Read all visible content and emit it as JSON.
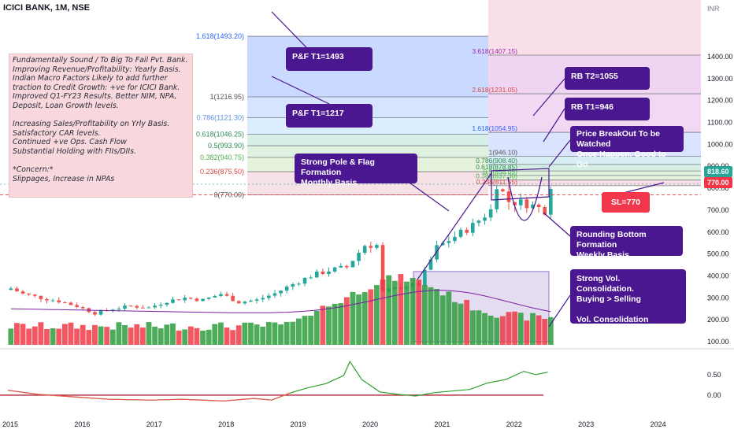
{
  "header": {
    "title": "ICICI BANK, 1M, NSE",
    "currency": "INR"
  },
  "notes": {
    "lines": [
      "Fundamentally Sound / To Big To Fail Pvt. Bank.",
      "Improving Revenue/Profitability: Yearly Basis.",
      "Indian Macro Factors Likely to add further",
      "traction to Credit Growth: +ve for ICICI Bank.",
      "Improved Q1-FY23 Results. Better NIM, NPA,",
      "Deposit, Loan Growth levels.",
      "",
      "Increasing Sales/Profitability on Yrly Basis.",
      "Satisfactory CAR levels.",
      "Continued +ve Ops. Cash Flow",
      "Substantial Holding with FIIs/DIIs.",
      "",
      "*Concern:*",
      "Slippages, Increase in NPAs"
    ]
  },
  "callouts": {
    "pf1493": "P&F T1=1493",
    "pf1217": "P&F T1=1217",
    "rbt2": "RB T2=1055",
    "rbt1": "RB T1=946",
    "breakout": [
      "Price BreakOut To be Watched",
      "Once Happen, Good to Go"
    ],
    "pole": [
      "Strong Pole & Flag Formation",
      "Monthly Basis"
    ],
    "sl": "SL=770",
    "rounding": [
      "Rounding Bottom Formation",
      "Weekly Basis"
    ],
    "volume": [
      "Strong Vol. Consolidation.",
      "Buying > Selling",
      "",
      "Vol. Consolidation Continued"
    ]
  },
  "price_tags": {
    "last": "818.60",
    "sl": "770.00"
  },
  "colors": {
    "up": "#26a69a",
    "down": "#ef5350",
    "vol_up": "#2e9e3c",
    "vol_down": "#f03a47",
    "callout": "#4a1791",
    "oscillator": "#2ca02c"
  },
  "chart_data": [
    {
      "type": "candlestick",
      "title": "ICICI BANK, 1M, NSE",
      "ylabel": "INR",
      "ylim": [
        60,
        1480
      ],
      "x_ticks": [
        "2015",
        "2016",
        "2017",
        "2018",
        "2019",
        "2020",
        "2021",
        "2022",
        "2023",
        "2024"
      ],
      "y_ticks": [
        100,
        200,
        300,
        400,
        500,
        600,
        700,
        800,
        900,
        1000,
        1100,
        1200,
        1300,
        1400
      ],
      "close_series": [
        [
          "2015-01",
          343
        ],
        [
          "2015-03",
          318
        ],
        [
          "2015-06",
          300
        ],
        [
          "2015-09",
          285
        ],
        [
          "2015-12",
          262
        ],
        [
          "2016-03",
          230
        ],
        [
          "2016-06",
          250
        ],
        [
          "2016-09",
          262
        ],
        [
          "2016-12",
          255
        ],
        [
          "2017-03",
          285
        ],
        [
          "2017-06",
          300
        ],
        [
          "2017-09",
          290
        ],
        [
          "2017-12",
          318
        ],
        [
          "2018-03",
          280
        ],
        [
          "2018-06",
          290
        ],
        [
          "2018-09",
          320
        ],
        [
          "2018-12",
          362
        ],
        [
          "2019-03",
          400
        ],
        [
          "2019-06",
          425
        ],
        [
          "2019-09",
          440
        ],
        [
          "2019-12",
          540
        ],
        [
          "2020-02",
          540
        ],
        [
          "2020-03",
          325
        ],
        [
          "2020-06",
          350
        ],
        [
          "2020-09",
          360
        ],
        [
          "2020-12",
          530
        ],
        [
          "2021-03",
          580
        ],
        [
          "2021-06",
          630
        ],
        [
          "2021-09",
          700
        ],
        [
          "2021-10",
          820
        ],
        [
          "2021-12",
          740
        ],
        [
          "2022-03",
          730
        ],
        [
          "2022-06",
          700
        ],
        [
          "2022-07",
          818.6
        ]
      ],
      "last_price": 818.6,
      "fibonacci_left": [
        {
          "level": "1.618",
          "value": 1493.2
        },
        {
          "level": "1",
          "value": 1216.95
        },
        {
          "level": "0.786",
          "value": 1121.3
        },
        {
          "level": "0.618",
          "value": 1046.25
        },
        {
          "level": "0.5",
          "value": 993.9
        },
        {
          "level": "0.382",
          "value": 940.75
        },
        {
          "level": "0.236",
          "value": 875.5
        },
        {
          "level": "0",
          "value": 770.0
        }
      ],
      "fibonacci_right": [
        {
          "level": "3.618",
          "value": 1407.15
        },
        {
          "level": "2.618",
          "value": 1231.05
        },
        {
          "level": "1.618",
          "value": 1054.95
        },
        {
          "level": "1",
          "value": 946.1
        },
        {
          "level": "0.786",
          "value": 908.4
        },
        {
          "level": "0.618",
          "value": 878.85
        },
        {
          "level": "0.5",
          "value": 858.05
        },
        {
          "level": "0.382",
          "value": 837.3
        },
        {
          "level": "0.236",
          "value": 811.55
        }
      ],
      "targets": {
        "pf_t1_high": 1493,
        "pf_t1_low": 1217,
        "rb_t2": 1055,
        "rb_t1": 946,
        "stop_loss": 770
      }
    },
    {
      "type": "line",
      "y_ticks": [
        0.0,
        0.5
      ],
      "ylim": [
        -0.25,
        0.9
      ],
      "reference_line": 0,
      "series": [
        {
          "values": [
            [
              "2015-01",
              0.12
            ],
            [
              "2015-06",
              0.02
            ],
            [
              "2016-01",
              -0.05
            ],
            [
              "2016-06",
              -0.1
            ],
            [
              "2017-01",
              -0.12
            ],
            [
              "2017-06",
              -0.1
            ],
            [
              "2018-01",
              -0.14
            ],
            [
              "2018-06",
              -0.08
            ],
            [
              "2018-09",
              -0.12
            ],
            [
              "2018-12",
              0.05
            ],
            [
              "2019-03",
              0.18
            ],
            [
              "2019-06",
              0.28
            ],
            [
              "2019-09",
              0.48
            ],
            [
              "2019-10",
              0.82
            ],
            [
              "2019-12",
              0.38
            ],
            [
              "2020-03",
              0.08
            ],
            [
              "2020-06",
              0.02
            ],
            [
              "2020-09",
              -0.02
            ],
            [
              "2020-12",
              0.06
            ],
            [
              "2021-03",
              0.1
            ],
            [
              "2021-06",
              0.14
            ],
            [
              "2021-09",
              0.3
            ],
            [
              "2021-12",
              0.38
            ],
            [
              "2022-03",
              0.58
            ],
            [
              "2022-05",
              0.5
            ],
            [
              "2022-07",
              0.56
            ]
          ]
        }
      ]
    }
  ]
}
